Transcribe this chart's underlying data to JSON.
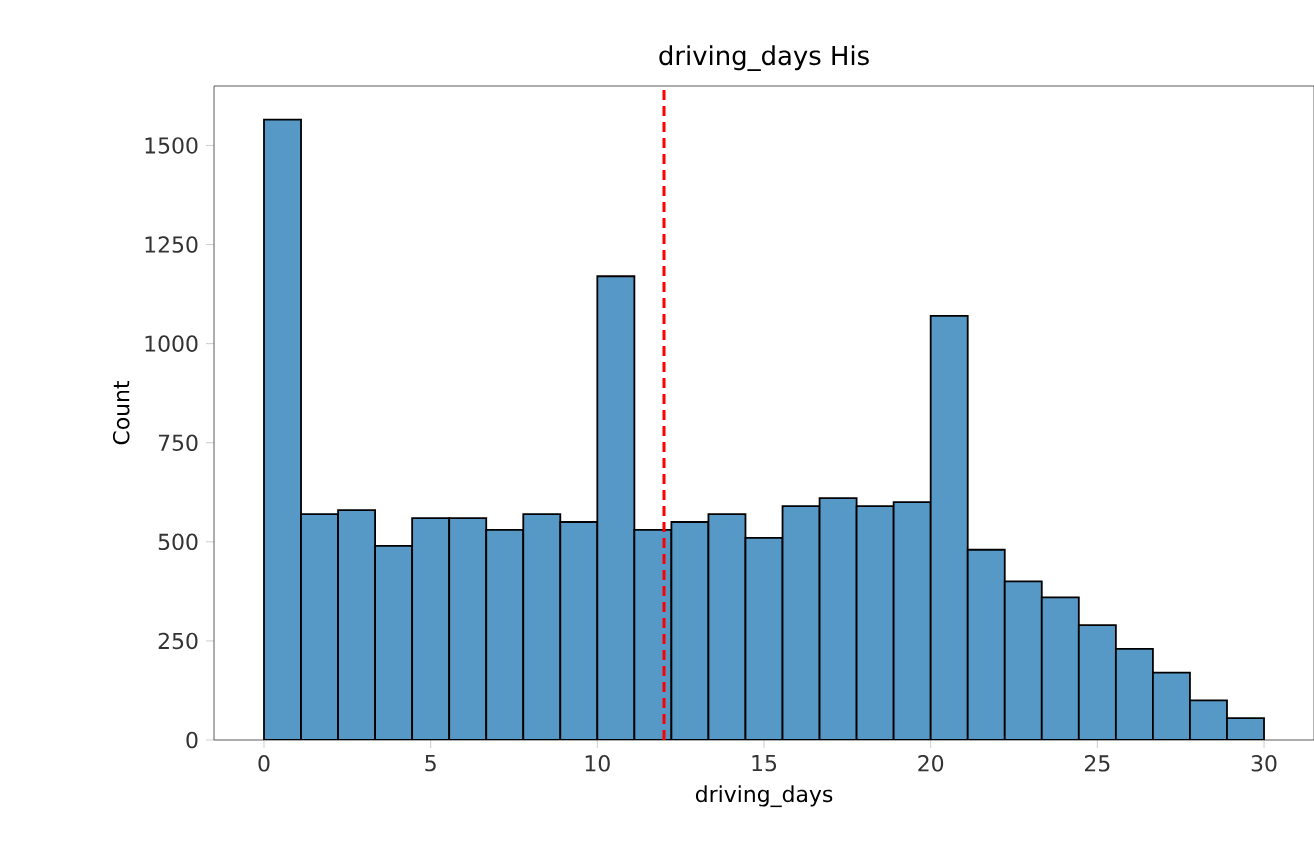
{
  "chart_data": {
    "type": "histogram",
    "title": "driving_days His",
    "xlabel": "driving_days",
    "ylabel": "Count",
    "bins": [
      0,
      1.111,
      2.222,
      3.333,
      4.444,
      5.556,
      6.667,
      7.778,
      8.889,
      10,
      11.111,
      12.222,
      13.333,
      14.444,
      15.556,
      16.667,
      17.778,
      18.889,
      20,
      21.111,
      22.222,
      23.333,
      24.444,
      25.556,
      26.667,
      27.778,
      28.889,
      30
    ],
    "values": [
      1565,
      570,
      580,
      490,
      560,
      560,
      530,
      570,
      550,
      1170,
      530,
      550,
      570,
      510,
      590,
      610,
      590,
      600,
      1070,
      480,
      400,
      360,
      290,
      230,
      170,
      100,
      55
    ],
    "color": "#5799c6",
    "xlim": [
      -1.5,
      31.5
    ],
    "ylim": [
      0,
      1650
    ],
    "xticks": [
      0,
      5,
      10,
      15,
      20,
      25,
      30
    ],
    "yticks": [
      0,
      250,
      500,
      750,
      1000,
      1250,
      1500
    ],
    "ref_lines": [
      {
        "axis": "x",
        "value": 12,
        "color": "#ff0000",
        "line_style": "dashed"
      }
    ],
    "grid": false
  }
}
